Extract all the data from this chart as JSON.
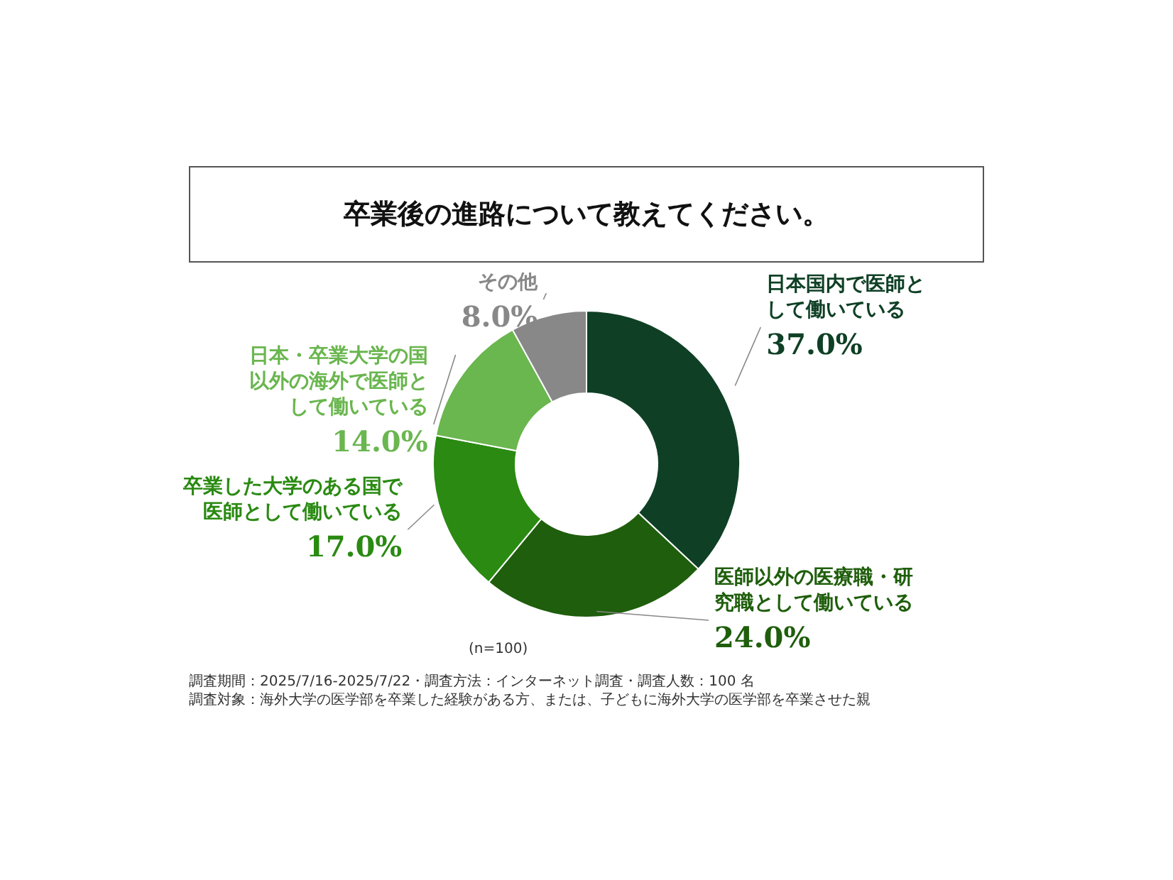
{
  "chart_data": {
    "type": "donut",
    "title": "卒業後の進路について教えてください。",
    "categories": [
      "日本国内で医師として働いている",
      "医師以外の医療職・研究職として働いている",
      "卒業した大学のある国で医師として働いている",
      "日本・卒業大学の国以外の海外で医師として働いている",
      "その他"
    ],
    "values": [
      37.0,
      24.0,
      17.0,
      14.0,
      8.0
    ],
    "colors": [
      "#0f4025",
      "#1f5e0c",
      "#2a8a12",
      "#6ab64f",
      "#888888"
    ],
    "value_labels": [
      "37.0%",
      "24.0%",
      "17.0%",
      "14.0%",
      "8.0%"
    ],
    "annotations": [
      "(n=100)",
      "調査期間：2025/7/16-2025/7/22・調査方法：インターネット調査・調査人数：100 名",
      "調査対象：海外大学の医学部を卒業した経験がある方、または、子どもに海外大学の医学部を卒業させた親"
    ]
  }
}
